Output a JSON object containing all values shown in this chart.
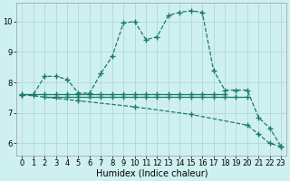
{
  "xlabel": "Humidex (Indice chaleur)",
  "bg_color": "#cff0f0",
  "grid_color": "#b0d8d8",
  "line_color": "#1a7a6e",
  "xlim": [
    -0.5,
    23.5
  ],
  "ylim": [
    5.6,
    10.6
  ],
  "yticks": [
    6,
    7,
    8,
    9,
    10
  ],
  "xticks": [
    0,
    1,
    2,
    3,
    4,
    5,
    6,
    7,
    8,
    9,
    10,
    11,
    12,
    13,
    14,
    15,
    16,
    17,
    18,
    19,
    20,
    21,
    22,
    23
  ],
  "line1_x": [
    0,
    1,
    2,
    3,
    4,
    5,
    6,
    7,
    8,
    9,
    10,
    11,
    12,
    13,
    14,
    15,
    16,
    17,
    18,
    19,
    20,
    21,
    22,
    23
  ],
  "line1_y": [
    7.6,
    7.6,
    8.2,
    8.2,
    8.1,
    7.65,
    7.65,
    8.3,
    8.85,
    9.95,
    10.0,
    9.4,
    9.5,
    10.2,
    10.3,
    10.35,
    10.3,
    8.4,
    7.75,
    7.75,
    7.75,
    6.85,
    6.5,
    5.9
  ],
  "line2_x": [
    2,
    3,
    4,
    5,
    6,
    7,
    8,
    9,
    10,
    11,
    12,
    13,
    14,
    15,
    16,
    17,
    18,
    19,
    20
  ],
  "line2_y": [
    7.52,
    7.52,
    7.52,
    7.52,
    7.52,
    7.52,
    7.52,
    7.52,
    7.52,
    7.52,
    7.52,
    7.52,
    7.52,
    7.52,
    7.52,
    7.52,
    7.52,
    7.52,
    7.52
  ],
  "line3_x": [
    0,
    1,
    2,
    3,
    4,
    5,
    6,
    7,
    8,
    9,
    10,
    11,
    12,
    13,
    14,
    15,
    16,
    17,
    18
  ],
  "line3_y": [
    7.62,
    7.62,
    7.62,
    7.62,
    7.62,
    7.62,
    7.62,
    7.62,
    7.62,
    7.62,
    7.62,
    7.62,
    7.62,
    7.62,
    7.62,
    7.62,
    7.62,
    7.62,
    7.62
  ],
  "line4_x": [
    0,
    5,
    10,
    15,
    20,
    21,
    22,
    23
  ],
  "line4_y": [
    7.6,
    7.4,
    7.2,
    6.95,
    6.6,
    6.3,
    6.0,
    5.9
  ],
  "marker": "+",
  "markersize": 4,
  "linewidth": 0.9,
  "tick_fontsize": 6,
  "xlabel_fontsize": 7
}
